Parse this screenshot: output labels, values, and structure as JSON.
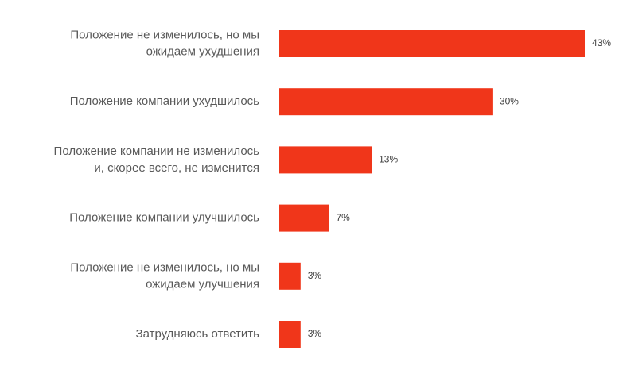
{
  "chart_data": {
    "type": "bar",
    "orientation": "horizontal",
    "categories": [
      [
        "Положение не изменилось, но мы",
        "ожидаем ухудшения"
      ],
      [
        "Положение компании ухудшилось"
      ],
      [
        "Положение компании не изменилось",
        "и, скорее всего, не изменится"
      ],
      [
        "Положение компании улучшилось"
      ],
      [
        "Положение не изменилось, но мы",
        "ожидаем улучшения"
      ],
      [
        "Затрудняюсь ответить"
      ]
    ],
    "values": [
      43,
      30,
      13,
      7,
      3,
      3
    ],
    "value_labels": [
      "43%",
      "30%",
      "13%",
      "7%",
      "3%",
      "3%"
    ],
    "xlim": [
      0,
      43
    ],
    "grid": false,
    "bar_color": "#f0361a",
    "label_color": "#595959",
    "value_label_color": "#404040"
  }
}
